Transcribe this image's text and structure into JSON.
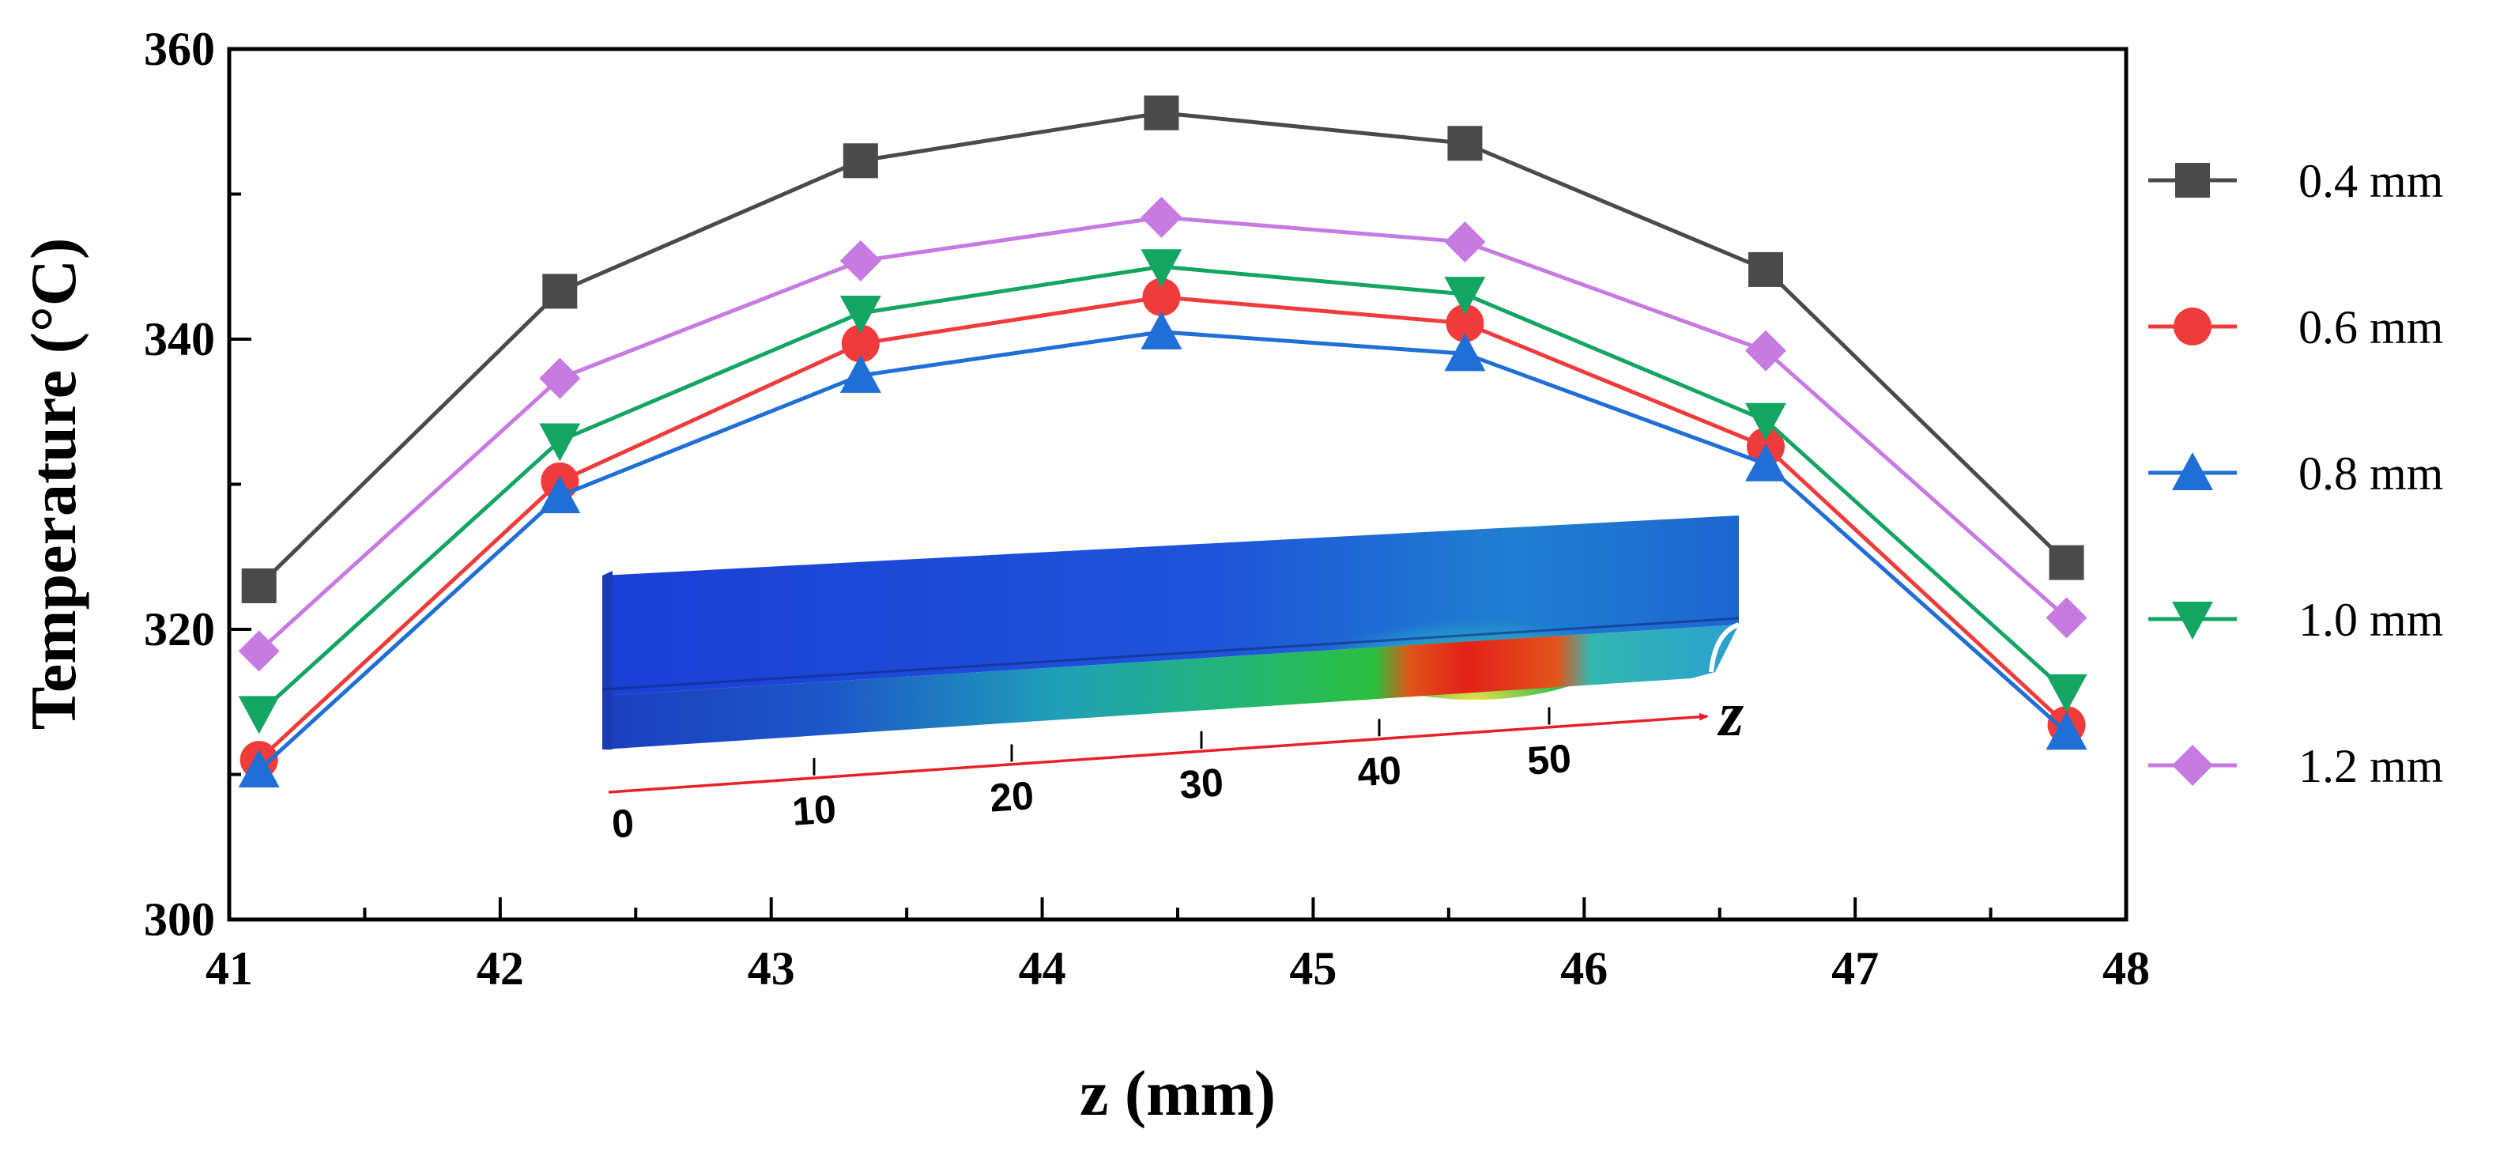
{
  "chart_data": {
    "type": "line",
    "xlabel": "z (mm)",
    "ylabel": "Temperature (°C)",
    "xlim": [
      41,
      48
    ],
    "ylim": [
      300,
      360
    ],
    "x_ticks": [
      41,
      42,
      43,
      44,
      45,
      46,
      47,
      48
    ],
    "y_ticks": [
      300,
      320,
      340,
      360
    ],
    "x": [
      41.11,
      42.22,
      43.33,
      44.44,
      45.56,
      46.67,
      47.78
    ],
    "legend_position": "right",
    "grid": false,
    "series": [
      {
        "name": "0.4 mm",
        "color": "#4a4a4a",
        "marker": "square",
        "values": [
          323.0,
          343.3,
          352.3,
          355.6,
          353.5,
          344.8,
          324.6
        ]
      },
      {
        "name": "0.6 mm",
        "color": "#ef3b3b",
        "marker": "circle",
        "values": [
          311.0,
          330.2,
          339.7,
          342.9,
          341.1,
          332.6,
          313.4
        ]
      },
      {
        "name": "0.8 mm",
        "color": "#1f6fd6",
        "marker": "triangle-up",
        "values": [
          310.3,
          329.2,
          337.5,
          340.5,
          339.0,
          331.4,
          312.9
        ]
      },
      {
        "name": "1.0 mm",
        "color": "#13a562",
        "marker": "triangle-down",
        "values": [
          314.2,
          333.0,
          341.8,
          345.0,
          343.1,
          334.4,
          315.7
        ]
      },
      {
        "name": "1.2 mm",
        "color": "#c77ae0",
        "marker": "diamond",
        "values": [
          318.5,
          337.3,
          345.4,
          348.4,
          346.7,
          339.2,
          320.8
        ]
      }
    ],
    "inset": {
      "axis_label": "z",
      "ticks": [
        "0",
        "10",
        "20",
        "30",
        "40",
        "50"
      ],
      "arrow_color": "#e8202a"
    }
  }
}
